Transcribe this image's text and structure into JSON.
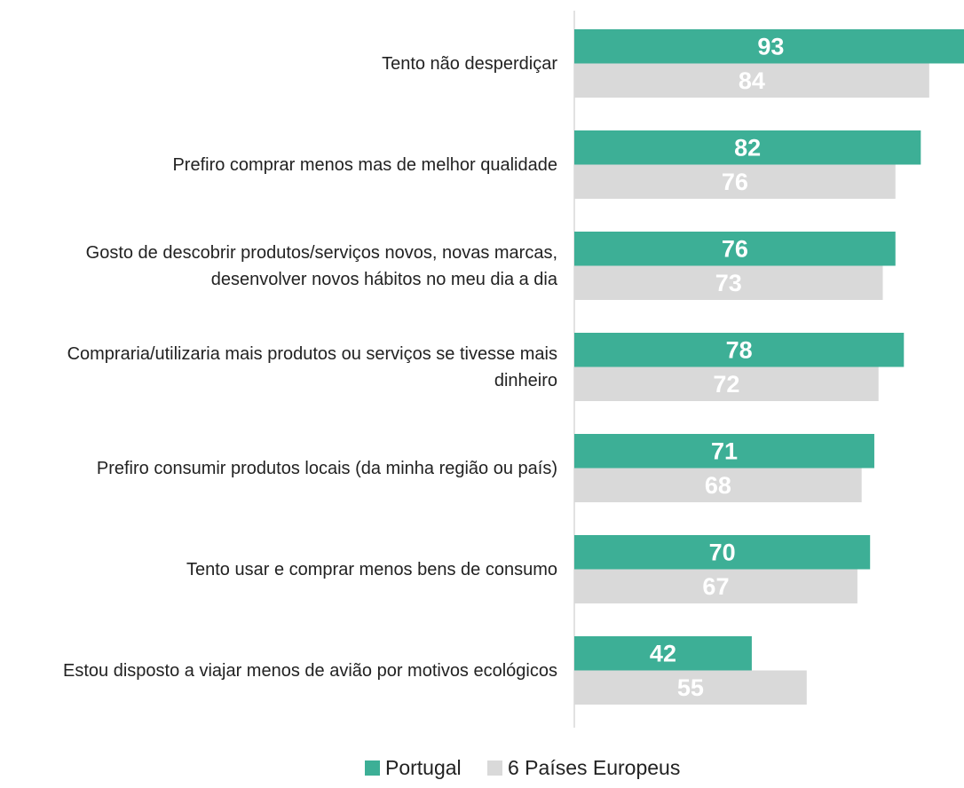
{
  "chart_data": {
    "type": "bar",
    "orientation": "horizontal",
    "categories": [
      "Tento não desperdiçar",
      "Prefiro comprar menos mas de melhor qualidade",
      "Gosto de descobrir produtos/serviços novos, novas marcas, desenvolver novos hábitos no meu dia a dia",
      "Compraria/utilizaria mais produtos ou serviços se tivesse mais dinheiro",
      "Prefiro consumir produtos locais (da minha região ou país)",
      "Tento usar e comprar menos bens de consumo",
      "Estou disposto a viajar menos de avião por motivos ecológicos"
    ],
    "series": [
      {
        "name": "Portugal",
        "color": "#3daf96",
        "values": [
          93,
          82,
          76,
          78,
          71,
          70,
          42
        ]
      },
      {
        "name": "6 Países Europeus",
        "color": "#d9d9d9",
        "values": [
          84,
          76,
          73,
          72,
          68,
          67,
          55
        ]
      }
    ]
  }
}
